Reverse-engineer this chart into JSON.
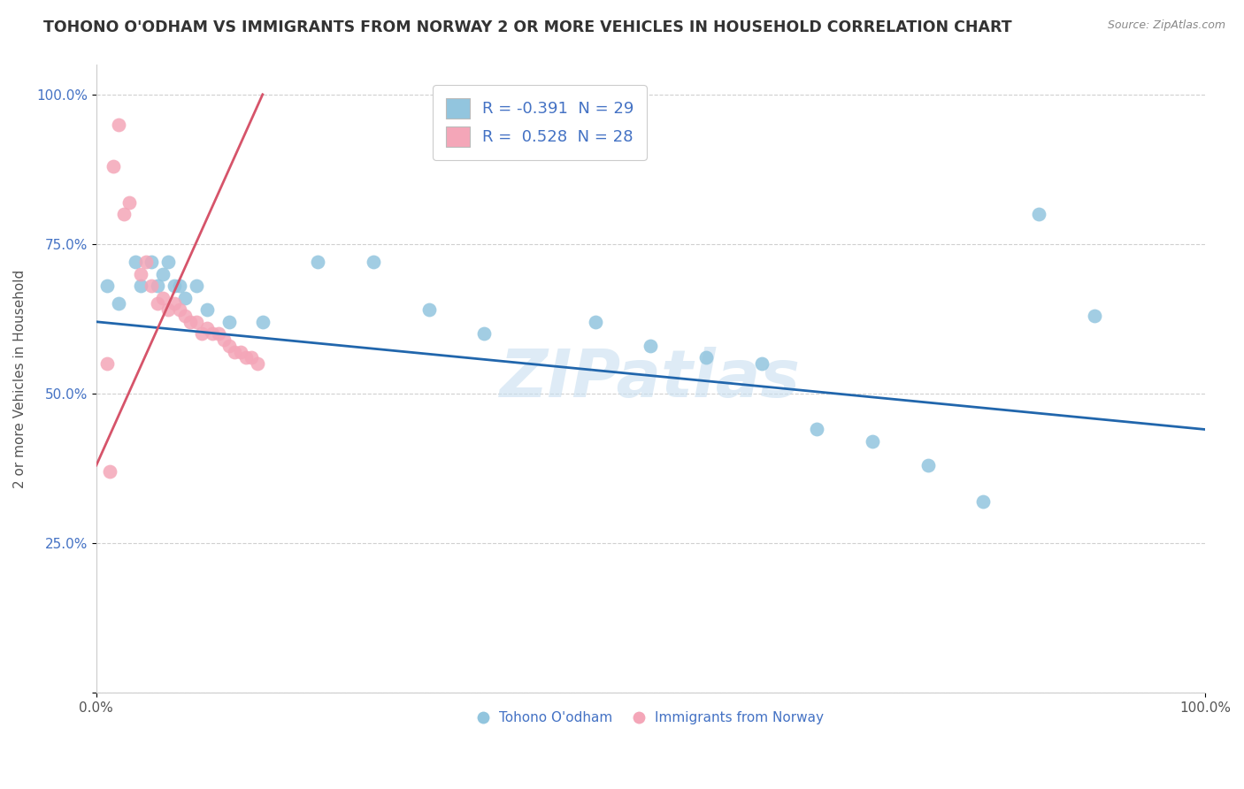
{
  "title": "TOHONO O'ODHAM VS IMMIGRANTS FROM NORWAY 2 OR MORE VEHICLES IN HOUSEHOLD CORRELATION CHART",
  "source": "Source: ZipAtlas.com",
  "ylabel": "2 or more Vehicles in Household",
  "watermark": "ZIPatlas",
  "legend1_label": "R = -0.391  N = 29",
  "legend2_label": "R =  0.528  N = 28",
  "blue_color": "#92c5de",
  "pink_color": "#f4a6b8",
  "blue_line_color": "#2166ac",
  "pink_line_color": "#d6546a",
  "blue_scatter": [
    [
      1.0,
      68.0
    ],
    [
      2.0,
      65.0
    ],
    [
      3.5,
      72.0
    ],
    [
      4.0,
      68.0
    ],
    [
      5.0,
      72.0
    ],
    [
      5.5,
      68.0
    ],
    [
      6.0,
      70.0
    ],
    [
      6.5,
      72.0
    ],
    [
      7.0,
      68.0
    ],
    [
      7.5,
      68.0
    ],
    [
      8.0,
      66.0
    ],
    [
      9.0,
      68.0
    ],
    [
      10.0,
      64.0
    ],
    [
      12.0,
      62.0
    ],
    [
      15.0,
      62.0
    ],
    [
      20.0,
      72.0
    ],
    [
      25.0,
      72.0
    ],
    [
      30.0,
      64.0
    ],
    [
      35.0,
      60.0
    ],
    [
      45.0,
      62.0
    ],
    [
      50.0,
      58.0
    ],
    [
      55.0,
      56.0
    ],
    [
      60.0,
      55.0
    ],
    [
      65.0,
      44.0
    ],
    [
      70.0,
      42.0
    ],
    [
      75.0,
      38.0
    ],
    [
      80.0,
      32.0
    ],
    [
      85.0,
      80.0
    ],
    [
      90.0,
      63.0
    ]
  ],
  "pink_scatter": [
    [
      1.0,
      55.0
    ],
    [
      1.5,
      88.0
    ],
    [
      2.0,
      95.0
    ],
    [
      2.5,
      80.0
    ],
    [
      3.0,
      82.0
    ],
    [
      4.0,
      70.0
    ],
    [
      4.5,
      72.0
    ],
    [
      5.0,
      68.0
    ],
    [
      5.5,
      65.0
    ],
    [
      6.0,
      66.0
    ],
    [
      6.5,
      64.0
    ],
    [
      7.0,
      65.0
    ],
    [
      7.5,
      64.0
    ],
    [
      8.0,
      63.0
    ],
    [
      8.5,
      62.0
    ],
    [
      9.0,
      62.0
    ],
    [
      9.5,
      60.0
    ],
    [
      10.0,
      61.0
    ],
    [
      10.5,
      60.0
    ],
    [
      11.0,
      60.0
    ],
    [
      11.5,
      59.0
    ],
    [
      12.0,
      58.0
    ],
    [
      12.5,
      57.0
    ],
    [
      13.0,
      57.0
    ],
    [
      13.5,
      56.0
    ],
    [
      14.0,
      56.0
    ],
    [
      14.5,
      55.0
    ],
    [
      1.2,
      37.0
    ]
  ],
  "ylim": [
    0,
    105
  ],
  "xlim": [
    0,
    100
  ],
  "yticks": [
    0,
    25,
    50,
    75,
    100
  ],
  "ytick_labels": [
    "",
    "25.0%",
    "50.0%",
    "75.0%",
    "100.0%"
  ],
  "bg_color": "#ffffff",
  "grid_color": "#d0d0d0",
  "watermark_color": "#c8dff0",
  "title_fontsize": 12.5,
  "label_fontsize": 11,
  "legend_fontsize": 13,
  "blue_trend_x": [
    0,
    100
  ],
  "blue_trend_y": [
    62.0,
    44.0
  ],
  "pink_trend_x": [
    0,
    15
  ],
  "pink_trend_y": [
    38.0,
    100.0
  ]
}
